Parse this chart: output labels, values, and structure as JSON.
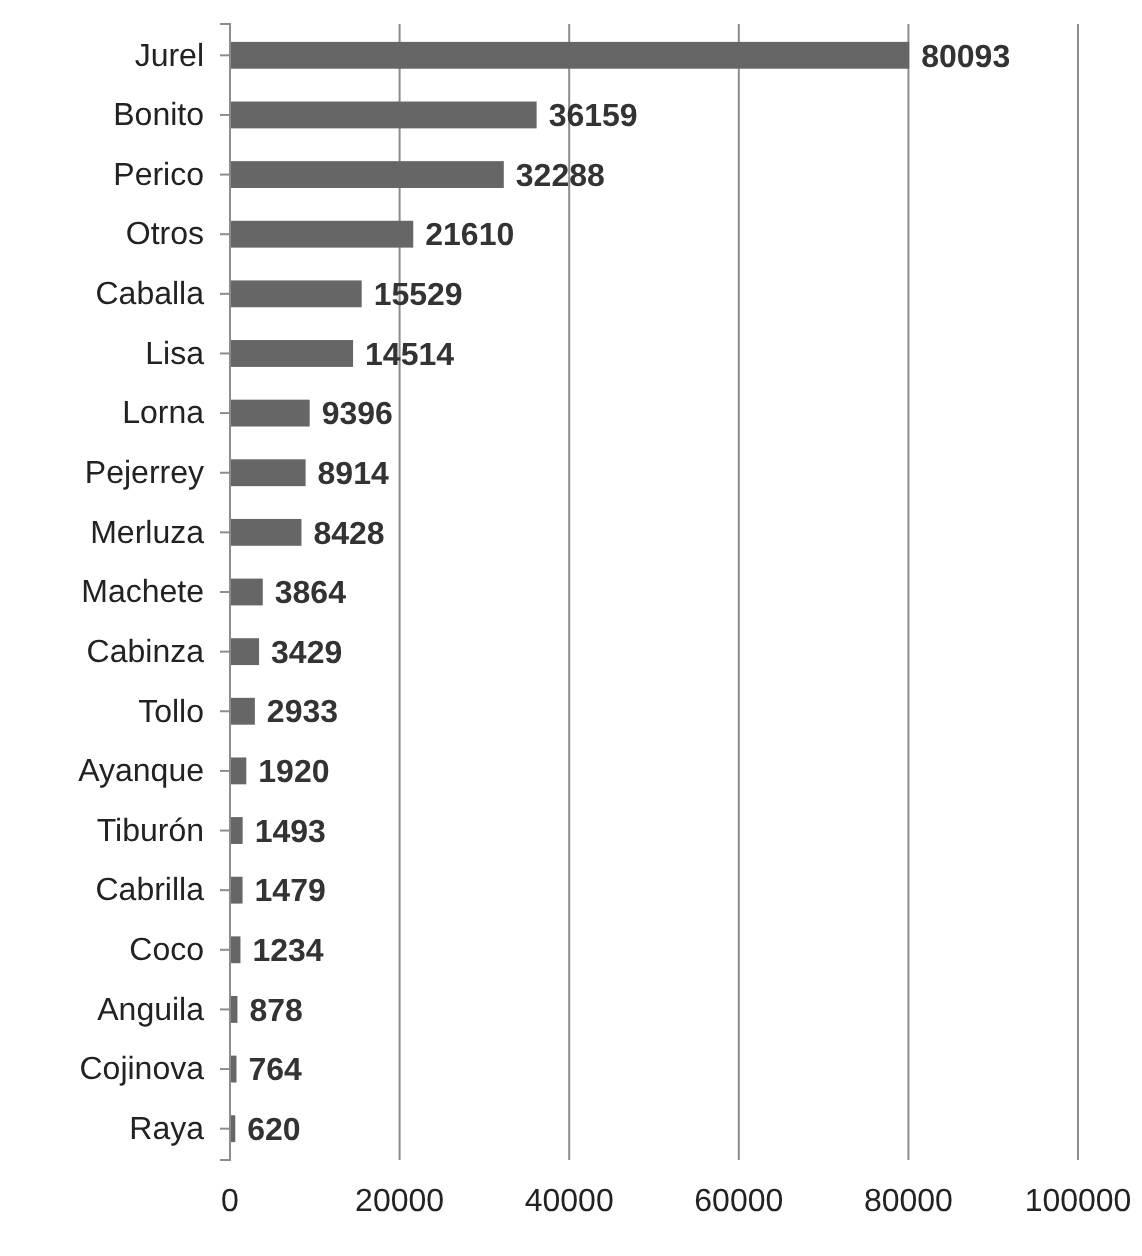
{
  "chart_data": {
    "type": "bar",
    "orientation": "horizontal",
    "categories": [
      "Jurel",
      "Bonito",
      "Perico",
      "Otros",
      "Caballa",
      "Lisa",
      "Lorna",
      "Pejerrey",
      "Merluza",
      "Machete",
      "Cabinza",
      "Tollo",
      "Ayanque",
      "Tiburón",
      "Cabrilla",
      "Coco",
      "Anguila",
      "Cojinova",
      "Raya"
    ],
    "values": [
      80093,
      36159,
      32288,
      21610,
      15529,
      14514,
      9396,
      8914,
      8428,
      3864,
      3429,
      2933,
      1920,
      1493,
      1479,
      1234,
      878,
      764,
      620
    ],
    "color": "#666666",
    "xlim": [
      0,
      100000
    ],
    "xticks": [
      0,
      20000,
      40000,
      60000,
      80000,
      100000
    ],
    "grid": "x",
    "data_labels": true
  }
}
